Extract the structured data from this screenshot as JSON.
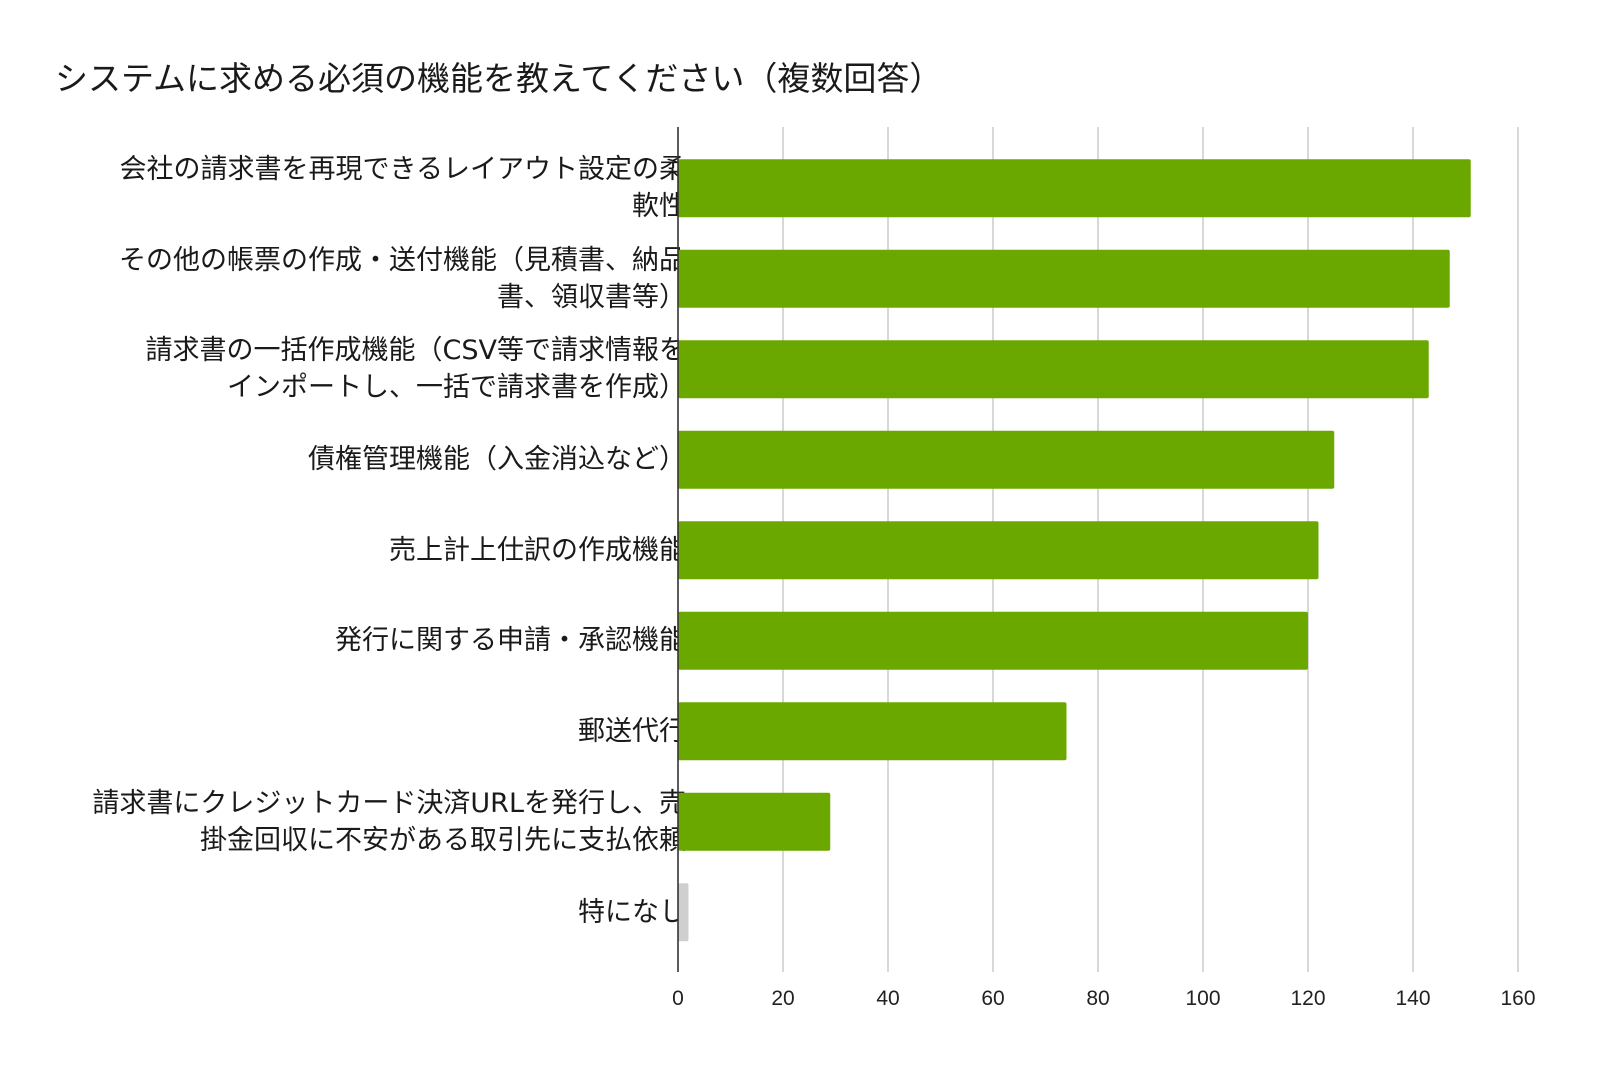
{
  "chart_data": {
    "type": "bar",
    "orientation": "horizontal",
    "title": "システムに求める必須の機能を教えてください（複数回答）",
    "categories": [
      "会社の請求書を再現できるレイアウト設定の柔軟性",
      "その他の帳票の作成・送付機能（見積書、納品書、領収書等）",
      "請求書の一括作成機能（CSV等で請求情報をインポートし、一括で請求書を作成）",
      "債権管理機能（入金消込など）",
      "売上計上仕訳の作成機能",
      "発行に関する申請・承認機能",
      "郵送代行",
      "請求書にクレジットカード決済URLを発行し、売掛金回収に不安がある取引先に支払依頼",
      "特になし"
    ],
    "category_lines": [
      [
        "会社の請求書を再現できるレイアウト設定の柔",
        "軟性"
      ],
      [
        "その他の帳票の作成・送付機能（見積書、納品",
        "書、領収書等）"
      ],
      [
        "請求書の一括作成機能（CSV等で請求情報を",
        "インポートし、一括で請求書を作成）"
      ],
      [
        "債権管理機能（入金消込など）"
      ],
      [
        "売上計上仕訳の作成機能"
      ],
      [
        "発行に関する申請・承認機能"
      ],
      [
        "郵送代行"
      ],
      [
        "請求書にクレジットカード決済URLを発行し、売",
        "掛金回収に不安がある取引先に支払依頼"
      ],
      [
        "特になし"
      ]
    ],
    "values": [
      151,
      147,
      143,
      125,
      122,
      120,
      74,
      29,
      2
    ],
    "bar_colors": [
      "#6aa800",
      "#6aa800",
      "#6aa800",
      "#6aa800",
      "#6aa800",
      "#6aa800",
      "#6aa800",
      "#6aa800",
      "#cfcfcf"
    ],
    "xlim": [
      0,
      160
    ],
    "xticks": [
      0,
      20,
      40,
      60,
      80,
      100,
      120,
      140,
      160
    ],
    "grid": true,
    "gridline_color": "#cccccc",
    "axis_color": "#333333"
  }
}
